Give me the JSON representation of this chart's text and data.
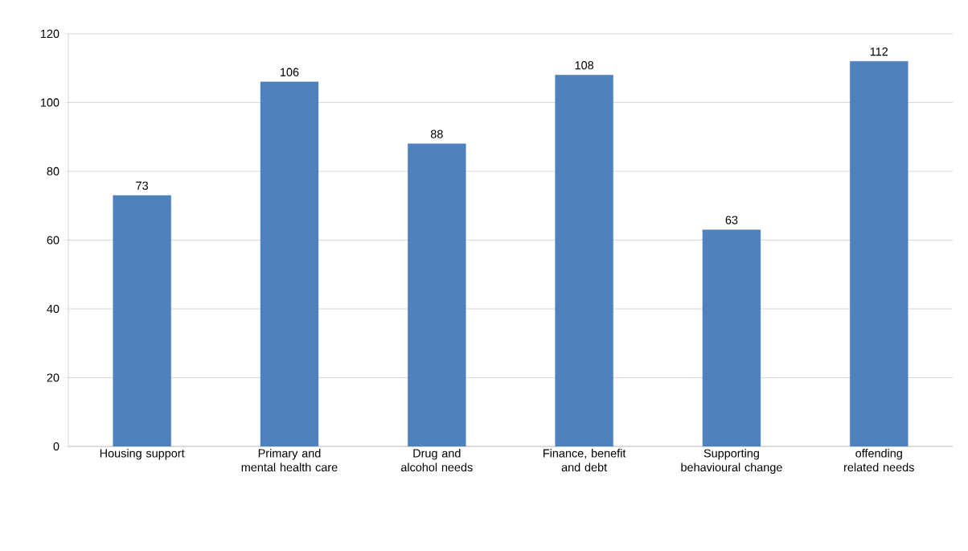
{
  "chart_data": {
    "type": "bar",
    "categories": [
      "Housing support",
      "Primary and mental health care",
      "Drug and alcohol needs",
      "Finance, benefit and debt",
      "Supporting behavioural change",
      "offending related needs"
    ],
    "values": [
      73,
      106,
      88,
      108,
      63,
      112
    ],
    "color": "#4f81bd",
    "ylim": [
      0,
      120
    ],
    "yticks": [
      0,
      20,
      40,
      60,
      80,
      100,
      120
    ],
    "grid": "y",
    "data_labels": true
  }
}
